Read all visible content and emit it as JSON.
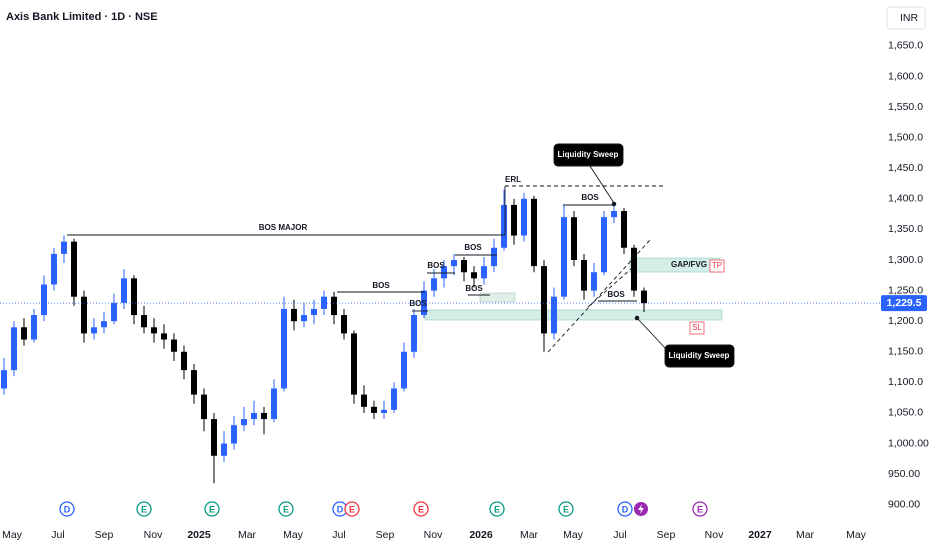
{
  "chart_data": {
    "type": "candlestick",
    "title": "Axis Bank Limited · 1D · NSE",
    "currency": "INR",
    "up_color": "#2962ff",
    "down_color": "#000000",
    "grid": false,
    "ylim": [
      875,
      1725
    ],
    "yticks": [
      {
        "value": 1650,
        "label": "1,650.0"
      },
      {
        "value": 1600,
        "label": "1,600.0"
      },
      {
        "value": 1550,
        "label": "1,550.0"
      },
      {
        "value": 1500,
        "label": "1,500.0"
      },
      {
        "value": 1450,
        "label": "1,450.0"
      },
      {
        "value": 1400,
        "label": "1,400.0"
      },
      {
        "value": 1350,
        "label": "1,350.0"
      },
      {
        "value": 1300,
        "label": "1,300.0"
      },
      {
        "value": 1250,
        "label": "1,250.0"
      },
      {
        "value": 1200,
        "label": "1,200.0"
      },
      {
        "value": 1150,
        "label": "1,150.0"
      },
      {
        "value": 1100,
        "label": "1,100.0"
      },
      {
        "value": 1050,
        "label": "1,050.0"
      },
      {
        "value": 1000,
        "label": "1,000.00"
      },
      {
        "value": 950,
        "label": "950.00"
      },
      {
        "value": 900,
        "label": "900.00"
      }
    ],
    "xlim": [
      -0.4,
      87.6
    ],
    "xticks": [
      {
        "value": 0.8,
        "label": "May"
      },
      {
        "value": 5.4,
        "label": "Jul"
      },
      {
        "value": 10.0,
        "label": "Sep"
      },
      {
        "value": 14.9,
        "label": "Nov"
      },
      {
        "value": 19.5,
        "label": "2025"
      },
      {
        "value": 24.3,
        "label": "Mar"
      },
      {
        "value": 28.9,
        "label": "May"
      },
      {
        "value": 33.5,
        "label": "Jul"
      },
      {
        "value": 38.1,
        "label": "Sep"
      },
      {
        "value": 42.9,
        "label": "Nov"
      },
      {
        "value": 47.7,
        "label": "2026"
      },
      {
        "value": 52.5,
        "label": "Mar"
      },
      {
        "value": 56.9,
        "label": "May"
      },
      {
        "value": 61.6,
        "label": "Jul"
      },
      {
        "value": 66.2,
        "label": "Sep"
      },
      {
        "value": 71.0,
        "label": "Nov"
      },
      {
        "value": 75.6,
        "label": "2027"
      },
      {
        "value": 80.1,
        "label": "Mar"
      },
      {
        "value": 85.2,
        "label": "May"
      }
    ],
    "series": {
      "open": [
        1090,
        1120,
        1190,
        1170,
        1210,
        1260,
        1310,
        1330,
        1240,
        1180,
        1190,
        1200,
        1230,
        1270,
        1210,
        1190,
        1180,
        1170,
        1150,
        1120,
        1080,
        1040,
        980,
        1000,
        1030,
        1040,
        1050,
        1040,
        1090,
        1220,
        1200,
        1210,
        1220,
        1240,
        1210,
        1180,
        1080,
        1060,
        1050,
        1055,
        1090,
        1150,
        1210,
        1250,
        1270,
        1290,
        1300,
        1280,
        1270,
        1290,
        1320,
        1390,
        1340,
        1400,
        1290,
        1180,
        1240,
        1370,
        1300,
        1250,
        1280,
        1370,
        1380,
        1320,
        1250
      ],
      "high": [
        1140,
        1200,
        1205,
        1220,
        1275,
        1320,
        1340,
        1335,
        1250,
        1205,
        1215,
        1245,
        1285,
        1275,
        1225,
        1205,
        1195,
        1180,
        1160,
        1130,
        1090,
        1050,
        1020,
        1045,
        1060,
        1070,
        1060,
        1105,
        1240,
        1235,
        1230,
        1235,
        1250,
        1248,
        1220,
        1185,
        1095,
        1070,
        1070,
        1100,
        1165,
        1220,
        1265,
        1285,
        1300,
        1310,
        1305,
        1290,
        1305,
        1335,
        1415,
        1400,
        1410,
        1405,
        1300,
        1255,
        1390,
        1380,
        1310,
        1295,
        1380,
        1395,
        1385,
        1325,
        1255
      ],
      "low": [
        1080,
        1110,
        1160,
        1165,
        1200,
        1250,
        1295,
        1225,
        1165,
        1170,
        1180,
        1195,
        1220,
        1195,
        1180,
        1165,
        1155,
        1135,
        1105,
        1065,
        1020,
        935,
        970,
        990,
        1020,
        1030,
        1015,
        1035,
        1085,
        1185,
        1190,
        1195,
        1210,
        1195,
        1170,
        1065,
        1050,
        1040,
        1040,
        1050,
        1085,
        1140,
        1205,
        1240,
        1255,
        1275,
        1265,
        1255,
        1260,
        1280,
        1315,
        1325,
        1330,
        1280,
        1150,
        1170,
        1235,
        1290,
        1235,
        1240,
        1275,
        1360,
        1310,
        1240,
        1215
      ],
      "close": [
        1120,
        1190,
        1170,
        1210,
        1260,
        1310,
        1330,
        1240,
        1180,
        1190,
        1200,
        1230,
        1270,
        1210,
        1190,
        1180,
        1170,
        1150,
        1120,
        1080,
        1040,
        980,
        1000,
        1030,
        1040,
        1050,
        1040,
        1090,
        1220,
        1200,
        1210,
        1220,
        1240,
        1210,
        1180,
        1080,
        1060,
        1050,
        1055,
        1090,
        1150,
        1210,
        1250,
        1270,
        1290,
        1300,
        1280,
        1270,
        1290,
        1320,
        1390,
        1340,
        1400,
        1290,
        1180,
        1240,
        1370,
        1300,
        1250,
        1280,
        1370,
        1380,
        1320,
        1250,
        1229.5
      ]
    },
    "last_price": {
      "value": 1229.5,
      "label": "1,229.5"
    },
    "events": [
      {
        "x": 6.3,
        "label": "D",
        "color": "#2962ff"
      },
      {
        "x": 14.0,
        "label": "E",
        "color": "#089981"
      },
      {
        "x": 20.8,
        "label": "E",
        "color": "#089981"
      },
      {
        "x": 28.2,
        "label": "E",
        "color": "#089981"
      },
      {
        "x": 33.6,
        "label": "D",
        "color": "#2962ff"
      },
      {
        "x": 34.8,
        "label": "E",
        "color": "#f23645"
      },
      {
        "x": 41.7,
        "label": "E",
        "color": "#f23645"
      },
      {
        "x": 49.3,
        "label": "E",
        "color": "#089981"
      },
      {
        "x": 56.2,
        "label": "E",
        "color": "#089981"
      },
      {
        "x": 62.1,
        "label": "D",
        "color": "#2962ff"
      },
      {
        "x": 69.6,
        "label": "E",
        "color": "#9c27b0"
      }
    ],
    "annotations": [
      "BOS MAJOR",
      "BOS",
      "BOS",
      "BOS",
      "BOS",
      "BOS",
      "BOS",
      "BOS",
      "ERL",
      "Liquidity Sweep",
      "Liquidity Sweep",
      "GAP/FVG",
      "TP",
      "SL"
    ]
  }
}
